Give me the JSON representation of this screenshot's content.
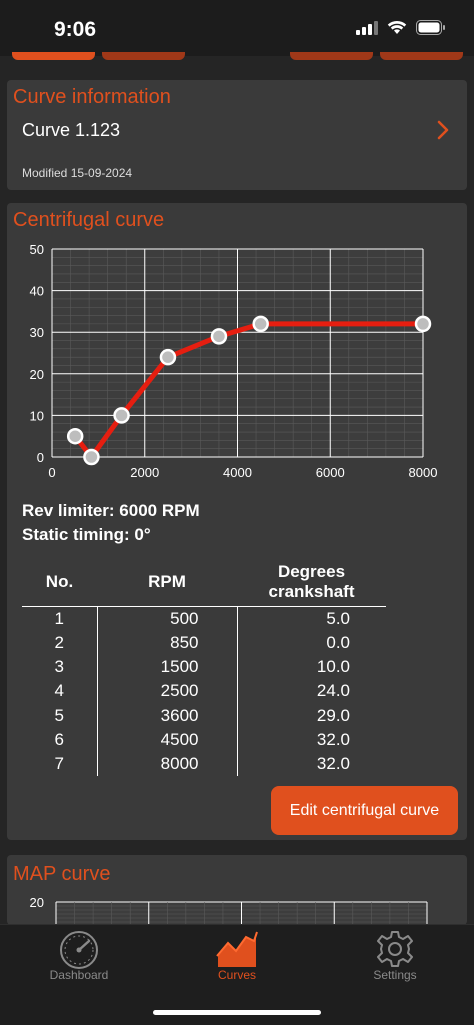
{
  "status_bar": {
    "time": "9:06"
  },
  "curve_info": {
    "title": "Curve information",
    "name": "Curve 1.123",
    "modified": "Modified 15-09-2024"
  },
  "centrifugal": {
    "title": "Centrifugal curve",
    "rev_limiter": "Rev limiter: 6000 RPM",
    "static_timing": "Static timing: 0°",
    "table": {
      "headers": {
        "no": "No.",
        "rpm": "RPM",
        "deg_line1": "Degrees",
        "deg_line2": "crankshaft"
      },
      "rows": [
        {
          "no": "1",
          "rpm": "500",
          "deg": "5.0"
        },
        {
          "no": "2",
          "rpm": "850",
          "deg": "0.0"
        },
        {
          "no": "3",
          "rpm": "1500",
          "deg": "10.0"
        },
        {
          "no": "4",
          "rpm": "2500",
          "deg": "24.0"
        },
        {
          "no": "5",
          "rpm": "3600",
          "deg": "29.0"
        },
        {
          "no": "6",
          "rpm": "4500",
          "deg": "32.0"
        },
        {
          "no": "7",
          "rpm": "8000",
          "deg": "32.0"
        }
      ]
    },
    "edit_label": "Edit centrifugal curve"
  },
  "map_curve": {
    "title": "MAP curve",
    "y_tick": "20"
  },
  "chart_data": {
    "type": "line",
    "x": [
      500,
      850,
      1500,
      2500,
      3600,
      4500,
      8000
    ],
    "values": [
      5,
      0,
      10,
      24,
      29,
      32,
      32
    ],
    "xlim": [
      0,
      8000
    ],
    "ylim": [
      0,
      50
    ],
    "x_ticks": [
      "0",
      "2000",
      "4000",
      "6000",
      "8000"
    ],
    "y_ticks": [
      "0",
      "10",
      "20",
      "30",
      "40",
      "50"
    ],
    "grid": true,
    "line_color": "#e61e10"
  },
  "tab_bar": {
    "dashboard_label": "Dashboard",
    "curves_label": "Curves",
    "settings_label": "Settings",
    "active": "curves"
  },
  "colors": {
    "accent": "#e0501e",
    "background": "#252525",
    "card": "#3a3a3a"
  },
  "icons": {
    "signal": "signal-icon",
    "wifi": "wifi-icon",
    "battery": "battery-icon",
    "chevron": "chevron-right-icon",
    "dashboard": "speedometer-icon",
    "curves": "curve-chart-icon",
    "settings": "gear-icon"
  }
}
